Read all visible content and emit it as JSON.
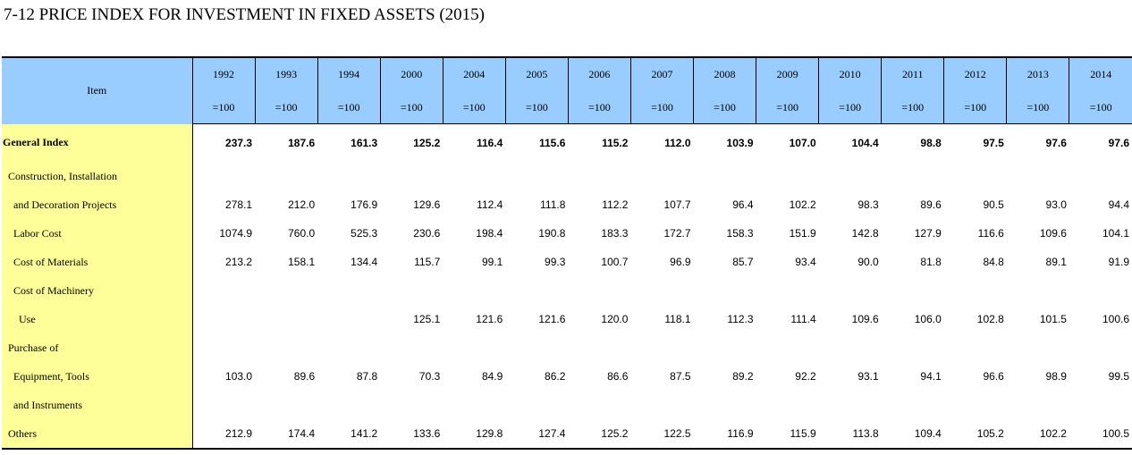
{
  "title": "7-12  PRICE INDEX FOR INVESTMENT IN FIXED ASSETS (2015)",
  "table": {
    "item_header": "Item",
    "years": [
      "1992",
      "1993",
      "1994",
      "2000",
      "2004",
      "2005",
      "2006",
      "2007",
      "2008",
      "2009",
      "2010",
      "2011",
      "2012",
      "2013",
      "2014"
    ],
    "base_label": "=100",
    "rows": [
      {
        "label": "General Index",
        "style": "general",
        "values": [
          "237.3",
          "187.6",
          "161.3",
          "125.2",
          "116.4",
          "115.6",
          "115.2",
          "112.0",
          "103.9",
          "107.0",
          "104.4",
          "98.8",
          "97.5",
          "97.6",
          "97.6"
        ]
      },
      {
        "label": "Construction, Installation",
        "style": "ind1",
        "values": [
          "",
          "",
          "",
          "",
          "",
          "",
          "",
          "",
          "",
          "",
          "",
          "",
          "",
          "",
          ""
        ]
      },
      {
        "label": "and Decoration Projects",
        "style": "ind2",
        "values": [
          "278.1",
          "212.0",
          "176.9",
          "129.6",
          "112.4",
          "111.8",
          "112.2",
          "107.7",
          "96.4",
          "102.2",
          "98.3",
          "89.6",
          "90.5",
          "93.0",
          "94.4"
        ]
      },
      {
        "label": "Labor Cost",
        "style": "ind2",
        "values": [
          "1074.9",
          "760.0",
          "525.3",
          "230.6",
          "198.4",
          "190.8",
          "183.3",
          "172.7",
          "158.3",
          "151.9",
          "142.8",
          "127.9",
          "116.6",
          "109.6",
          "104.1"
        ]
      },
      {
        "label": "Cost of Materials",
        "style": "ind2",
        "values": [
          "213.2",
          "158.1",
          "134.4",
          "115.7",
          "99.1",
          "99.3",
          "100.7",
          "96.9",
          "85.7",
          "93.4",
          "90.0",
          "81.8",
          "84.8",
          "89.1",
          "91.9"
        ]
      },
      {
        "label": "Cost of Machinery",
        "style": "ind2",
        "values": [
          "",
          "",
          "",
          "",
          "",
          "",
          "",
          "",
          "",
          "",
          "",
          "",
          "",
          "",
          ""
        ]
      },
      {
        "label": "Use",
        "style": "ind3",
        "values": [
          "",
          "",
          "",
          "125.1",
          "121.6",
          "121.6",
          "120.0",
          "118.1",
          "112.3",
          "111.4",
          "109.6",
          "106.0",
          "102.8",
          "101.5",
          "100.6"
        ]
      },
      {
        "label": "Purchase of",
        "style": "ind1",
        "values": [
          "",
          "",
          "",
          "",
          "",
          "",
          "",
          "",
          "",
          "",
          "",
          "",
          "",
          "",
          ""
        ]
      },
      {
        "label": "Equipment, Tools",
        "style": "ind2",
        "values": [
          "103.0",
          "89.6",
          "87.8",
          "70.3",
          "84.9",
          "86.2",
          "86.6",
          "87.5",
          "89.2",
          "92.2",
          "93.1",
          "94.1",
          "96.6",
          "98.9",
          "99.5"
        ]
      },
      {
        "label": "and Instruments",
        "style": "ind2",
        "values": [
          "",
          "",
          "",
          "",
          "",
          "",
          "",
          "",
          "",
          "",
          "",
          "",
          "",
          "",
          ""
        ]
      },
      {
        "label": "Others",
        "style": "ind1",
        "values": [
          "212.9",
          "174.4",
          "141.2",
          "133.6",
          "129.8",
          "127.4",
          "125.2",
          "122.5",
          "116.9",
          "115.9",
          "113.8",
          "109.4",
          "105.2",
          "102.2",
          "100.5"
        ]
      }
    ]
  },
  "colors": {
    "header_bg": "#99ccff",
    "label_bg": "#ffff99"
  }
}
